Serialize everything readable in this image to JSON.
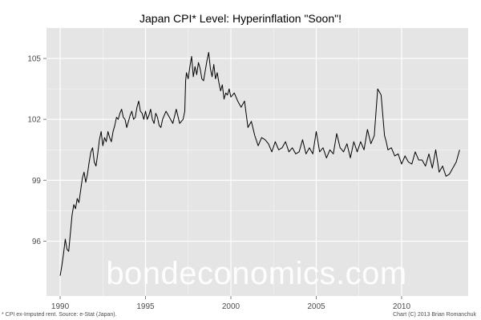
{
  "chart_data": {
    "type": "line",
    "title": "Japan CPI* Level: Hyperinflation \"Soon\"!",
    "xlabel": "",
    "ylabel": "",
    "xlim": [
      1989.2,
      2013.9
    ],
    "ylim": [
      93.3,
      106.5
    ],
    "x_ticks": [
      1990,
      1995,
      2000,
      2005,
      2010
    ],
    "x_tick_labels": [
      "1990",
      "1995",
      "2000",
      "2005",
      "2010"
    ],
    "y_ticks": [
      96,
      99,
      102,
      105
    ],
    "y_tick_labels": [
      "96",
      "99",
      "102",
      "105"
    ],
    "grid": true,
    "background": "#e5e5e5",
    "grid_color": "#ffffff",
    "line_color": "#000000",
    "series": [
      {
        "x": [
          1990.0,
          1990.1,
          1990.2,
          1990.3,
          1990.4,
          1990.5,
          1990.6,
          1990.7,
          1990.8,
          1990.9,
          1991.0,
          1991.1,
          1991.2,
          1991.3,
          1991.4,
          1991.5,
          1991.6,
          1991.7,
          1991.8,
          1991.9,
          1992.0,
          1992.1,
          1992.2,
          1992.3,
          1992.4,
          1992.5,
          1992.6,
          1992.7,
          1992.8,
          1992.9,
          1993.0,
          1993.1,
          1993.2,
          1993.3,
          1993.4,
          1993.5,
          1993.6,
          1993.7,
          1993.8,
          1993.9,
          1994.0,
          1994.1,
          1994.2,
          1994.3,
          1994.4,
          1994.5,
          1994.6,
          1994.7,
          1994.8,
          1994.9,
          1995.0,
          1995.1,
          1995.2,
          1995.3,
          1995.4,
          1995.5,
          1995.6,
          1995.7,
          1995.8,
          1995.9,
          1996.0,
          1996.2,
          1996.4,
          1996.6,
          1996.8,
          1997.0,
          1997.2,
          1997.3,
          1997.35,
          1997.4,
          1997.5,
          1997.6,
          1997.7,
          1997.8,
          1997.9,
          1998.0,
          1998.1,
          1998.2,
          1998.3,
          1998.4,
          1998.5,
          1998.6,
          1998.7,
          1998.8,
          1998.9,
          1999.0,
          1999.1,
          1999.2,
          1999.3,
          1999.4,
          1999.5,
          1999.6,
          1999.7,
          1999.8,
          1999.9,
          2000.0,
          2000.2,
          2000.4,
          2000.6,
          2000.8,
          2001.0,
          2001.2,
          2001.4,
          2001.6,
          2001.8,
          2002.0,
          2002.2,
          2002.4,
          2002.6,
          2002.8,
          2003.0,
          2003.2,
          2003.4,
          2003.6,
          2003.8,
          2004.0,
          2004.2,
          2004.4,
          2004.6,
          2004.8,
          2005.0,
          2005.2,
          2005.4,
          2005.6,
          2005.8,
          2006.0,
          2006.2,
          2006.4,
          2006.6,
          2006.8,
          2007.0,
          2007.2,
          2007.4,
          2007.6,
          2007.8,
          2008.0,
          2008.2,
          2008.4,
          2008.6,
          2008.8,
          2008.9,
          2009.0,
          2009.1,
          2009.2,
          2009.4,
          2009.6,
          2009.8,
          2010.0,
          2010.2,
          2010.4,
          2010.6,
          2010.8,
          2011.0,
          2011.2,
          2011.4,
          2011.6,
          2011.8,
          2012.0,
          2012.2,
          2012.4,
          2012.6,
          2012.8,
          2013.0,
          2013.2,
          2013.4
        ],
        "y": [
          94.3,
          94.8,
          95.4,
          96.1,
          95.6,
          95.5,
          96.4,
          97.3,
          97.8,
          97.6,
          98.1,
          97.9,
          98.5,
          99.1,
          99.4,
          98.9,
          99.3,
          99.9,
          100.4,
          100.6,
          99.9,
          99.7,
          100.3,
          101.0,
          101.4,
          100.7,
          101.1,
          100.9,
          101.4,
          101.1,
          100.9,
          101.4,
          101.7,
          102.1,
          102.0,
          102.3,
          102.5,
          102.1,
          102.0,
          101.6,
          101.9,
          102.2,
          102.4,
          102.0,
          102.1,
          102.6,
          102.9,
          102.4,
          102.3,
          102.0,
          102.4,
          102.0,
          102.2,
          102.5,
          102.0,
          101.8,
          102.3,
          102.1,
          101.7,
          101.6,
          102.0,
          102.4,
          102.1,
          101.8,
          102.5,
          101.8,
          102.0,
          102.4,
          103.9,
          104.3,
          104.0,
          104.6,
          105.1,
          104.1,
          104.6,
          104.2,
          104.8,
          104.5,
          104.0,
          103.9,
          104.4,
          104.9,
          105.3,
          104.5,
          104.1,
          104.7,
          104.0,
          104.3,
          103.8,
          103.4,
          103.7,
          103.0,
          103.3,
          103.2,
          103.5,
          103.1,
          103.3,
          102.9,
          102.6,
          102.9,
          101.6,
          101.9,
          101.2,
          100.7,
          101.1,
          101.0,
          100.8,
          100.4,
          100.9,
          100.5,
          100.6,
          100.9,
          100.4,
          100.6,
          100.3,
          100.4,
          101.0,
          100.3,
          100.6,
          100.3,
          101.4,
          100.4,
          100.6,
          100.1,
          100.5,
          100.3,
          101.3,
          100.6,
          100.4,
          100.8,
          100.1,
          100.9,
          100.4,
          100.9,
          100.5,
          101.5,
          100.8,
          101.2,
          103.5,
          103.2,
          102.2,
          101.2,
          100.9,
          100.5,
          100.6,
          100.2,
          100.3,
          99.8,
          100.2,
          99.9,
          99.8,
          100.4,
          100.0,
          100.0,
          99.7,
          100.3,
          99.6,
          100.5,
          99.4,
          99.7,
          99.2,
          99.3,
          99.6,
          99.9,
          100.5
        ]
      }
    ]
  },
  "watermark": "bondeconomics.com",
  "footnote": "* CPI ex-Imputed rent. Source: e-Stat (Japan).",
  "credit": "Chart (C) 2013 Brian Romanchuk"
}
